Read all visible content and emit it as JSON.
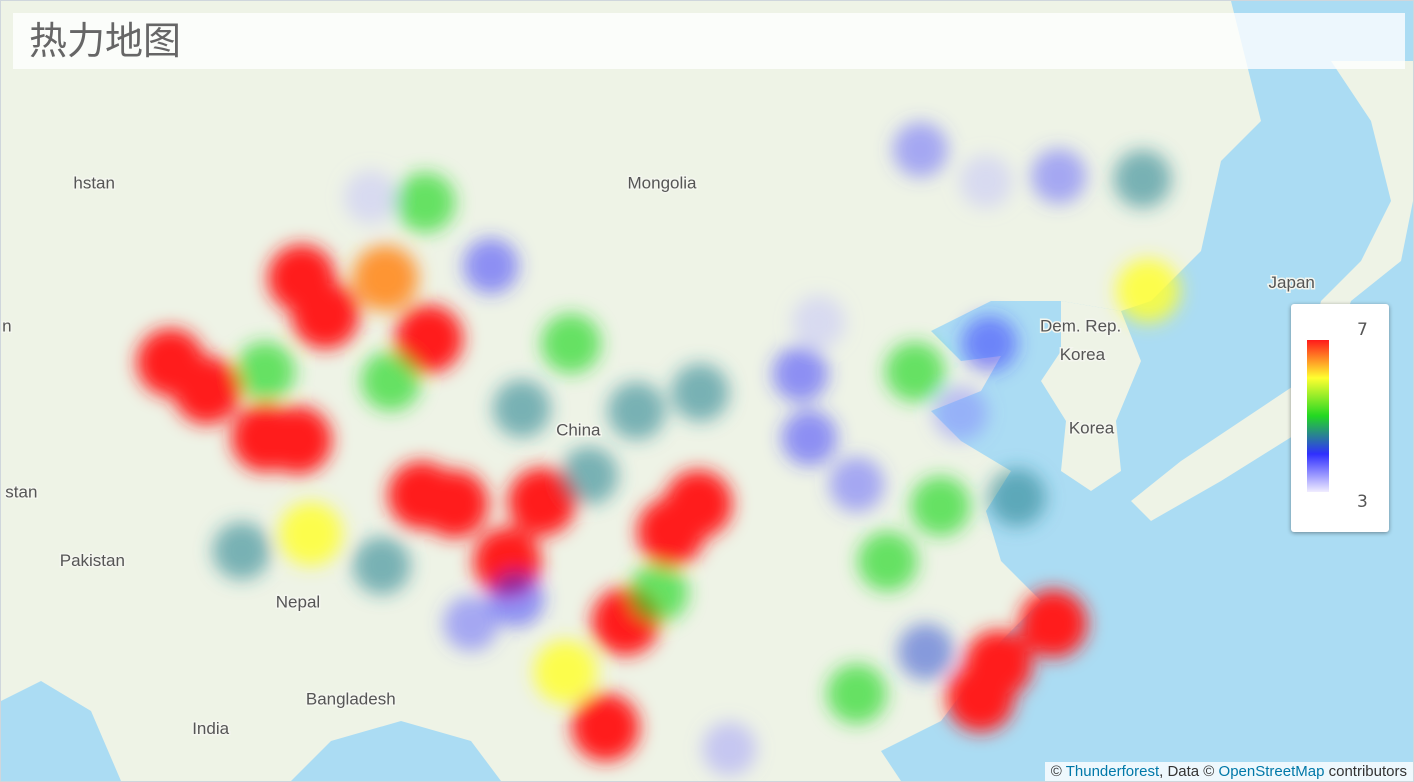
{
  "header": {
    "title": "热力地图"
  },
  "map_labels": [
    {
      "text": "hstan",
      "lon": 72.8,
      "lat": 46.2
    },
    {
      "text": "n",
      "lon": 68.0,
      "lat": 40.5
    },
    {
      "text": "stan",
      "lon": 68.8,
      "lat": 33.2
    },
    {
      "text": "Pakistan",
      "lon": 72.7,
      "lat": 30.0
    },
    {
      "text": "Mongolia",
      "lon": 104.0,
      "lat": 46.2
    },
    {
      "text": "Japan",
      "lon": 138.6,
      "lat": 42.3
    },
    {
      "text": "Dem. Rep.",
      "lon": 127.0,
      "lat": 40.5
    },
    {
      "text": "Korea",
      "lon": 127.1,
      "lat": 39.3
    },
    {
      "text": "China",
      "lon": 99.4,
      "lat": 36.0
    },
    {
      "text": "Korea",
      "lon": 127.6,
      "lat": 36.1
    },
    {
      "text": "Nepal",
      "lon": 84.0,
      "lat": 28.0
    },
    {
      "text": "Bangladesh",
      "lon": 86.9,
      "lat": 23.2
    },
    {
      "text": "India",
      "lon": 79.2,
      "lat": 21.7
    }
  ],
  "heat": {
    "min": 3,
    "max": 7,
    "gradient": [
      "#f0ecff",
      "#2f2fff",
      "#22d822",
      "#ffff30",
      "#ff1a1a"
    ],
    "points": [
      {
        "lon": 84.2,
        "lat": 42.5,
        "value": 7
      },
      {
        "lon": 85.5,
        "lat": 41.0,
        "value": 7
      },
      {
        "lon": 88.8,
        "lat": 42.5,
        "value": 6.5
      },
      {
        "lon": 91.2,
        "lat": 40.0,
        "value": 7
      },
      {
        "lon": 77.0,
        "lat": 39.0,
        "value": 7
      },
      {
        "lon": 79.0,
        "lat": 37.8,
        "value": 7
      },
      {
        "lon": 82.2,
        "lat": 35.7,
        "value": 7
      },
      {
        "lon": 84.0,
        "lat": 35.6,
        "value": 7
      },
      {
        "lon": 82.2,
        "lat": 38.6,
        "value": 5
      },
      {
        "lon": 90.8,
        "lat": 33.1,
        "value": 7
      },
      {
        "lon": 92.6,
        "lat": 32.7,
        "value": 7
      },
      {
        "lon": 97.4,
        "lat": 32.8,
        "value": 7
      },
      {
        "lon": 95.5,
        "lat": 30.0,
        "value": 7
      },
      {
        "lon": 104.5,
        "lat": 31.4,
        "value": 7
      },
      {
        "lon": 106.0,
        "lat": 32.7,
        "value": 7
      },
      {
        "lon": 102.0,
        "lat": 27.1,
        "value": 7
      },
      {
        "lon": 100.9,
        "lat": 21.8,
        "value": 7
      },
      {
        "lon": 98.7,
        "lat": 24.6,
        "value": 6
      },
      {
        "lon": 84.7,
        "lat": 31.3,
        "value": 6
      },
      {
        "lon": 121.5,
        "lat": 23.3,
        "value": 7
      },
      {
        "lon": 122.5,
        "lat": 25.0,
        "value": 7
      },
      {
        "lon": 125.5,
        "lat": 27.0,
        "value": 7
      },
      {
        "lon": 130.7,
        "lat": 42.0,
        "value": 6
      },
      {
        "lon": 91.0,
        "lat": 45.5,
        "value": 5
      },
      {
        "lon": 99.0,
        "lat": 39.8,
        "value": 5
      },
      {
        "lon": 117.9,
        "lat": 38.6,
        "value": 5
      },
      {
        "lon": 119.3,
        "lat": 32.6,
        "value": 5
      },
      {
        "lon": 123.5,
        "lat": 33.0,
        "value": 4.5
      },
      {
        "lon": 130.4,
        "lat": 46.4,
        "value": 4.5
      },
      {
        "lon": 114.7,
        "lat": 23.5,
        "value": 5
      },
      {
        "lon": 116.4,
        "lat": 30.0,
        "value": 5
      },
      {
        "lon": 94.6,
        "lat": 43.0,
        "value": 4
      },
      {
        "lon": 118.2,
        "lat": 47.5,
        "value": 3.8
      },
      {
        "lon": 125.8,
        "lat": 46.5,
        "value": 3.8
      },
      {
        "lon": 121.8,
        "lat": 46.3,
        "value": 3.3
      },
      {
        "lon": 111.6,
        "lat": 38.5,
        "value": 4
      },
      {
        "lon": 112.1,
        "lat": 35.7,
        "value": 4
      },
      {
        "lon": 114.7,
        "lat": 33.6,
        "value": 3.8
      },
      {
        "lon": 122.0,
        "lat": 39.8,
        "value": 4
      },
      {
        "lon": 102.6,
        "lat": 36.9,
        "value": 4.5
      },
      {
        "lon": 106.1,
        "lat": 37.7,
        "value": 4.5
      },
      {
        "lon": 93.5,
        "lat": 27.0,
        "value": 3.8
      },
      {
        "lon": 118.5,
        "lat": 25.6,
        "value": 4.2
      },
      {
        "lon": 107.7,
        "lat": 20.7,
        "value": 3.5
      },
      {
        "lon": 80.9,
        "lat": 30.5,
        "value": 4.5
      },
      {
        "lon": 88.6,
        "lat": 29.8,
        "value": 4.5
      },
      {
        "lon": 96.3,
        "lat": 37.0,
        "value": 4.5
      },
      {
        "lon": 89.1,
        "lat": 38.2,
        "value": 5
      },
      {
        "lon": 112.6,
        "lat": 40.7,
        "value": 3.3
      },
      {
        "lon": 120.4,
        "lat": 36.8,
        "value": 3.6
      },
      {
        "lon": 88.0,
        "lat": 45.7,
        "value": 3.3
      },
      {
        "lon": 103.8,
        "lat": 28.5,
        "value": 5
      },
      {
        "lon": 100.0,
        "lat": 34.0,
        "value": 4.5
      },
      {
        "lon": 96.0,
        "lat": 28.2,
        "value": 4
      }
    ]
  },
  "legend": {
    "max": "7",
    "min": "3"
  },
  "attribution": {
    "prefix": "© ",
    "provider": "Thunderforest",
    "middle": ", Data © ",
    "source": "OpenStreetMap",
    "suffix": " contributors"
  }
}
